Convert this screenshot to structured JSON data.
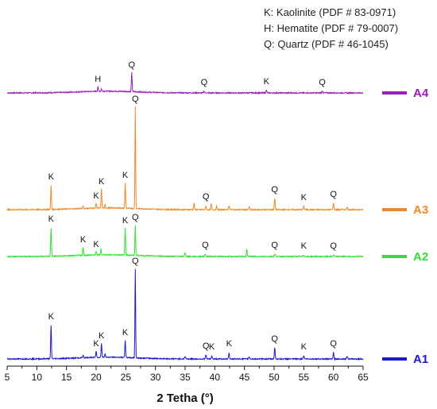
{
  "legend": [
    "K: Kaolinite (PDF # 83-0971)",
    "H: Hematite (PDF # 79-0007)",
    "Q: Quartz (PDF # 46-1045)"
  ],
  "chart_data": {
    "type": "line",
    "title": "",
    "xlabel": "2 Tetha (°)",
    "ylabel": "",
    "xlim": [
      5,
      65
    ],
    "xticks": [
      5,
      10,
      15,
      20,
      25,
      30,
      35,
      40,
      45,
      50,
      55,
      60,
      65
    ],
    "yaxis_shown": false,
    "grid": false,
    "legend_placement": "top-right",
    "series": [
      {
        "name": "A4",
        "color": "#9b1fb5",
        "baseline": 0,
        "peaks": [
          {
            "x": 20.3,
            "h": 6,
            "w": 0.08,
            "label": "H"
          },
          {
            "x": 26.0,
            "h": 24,
            "w": 0.09,
            "label": "Q"
          },
          {
            "x": 20.9,
            "h": 3,
            "w": 0.08,
            "label": ""
          },
          {
            "x": 38.2,
            "h": 2,
            "w": 0.12,
            "label": "Q"
          },
          {
            "x": 48.7,
            "h": 3,
            "w": 0.12,
            "label": "K"
          },
          {
            "x": 58.1,
            "h": 2,
            "w": 0.12,
            "label": "Q"
          }
        ]
      },
      {
        "name": "A3",
        "color": "#f08a24",
        "baseline": 0,
        "peaks": [
          {
            "x": 12.4,
            "h": 30,
            "w": 0.09,
            "label": "K"
          },
          {
            "x": 17.8,
            "h": 3,
            "w": 0.1,
            "label": ""
          },
          {
            "x": 20.0,
            "h": 6,
            "w": 0.09,
            "label": "K"
          },
          {
            "x": 20.9,
            "h": 24,
            "w": 0.09,
            "label": "K"
          },
          {
            "x": 21.5,
            "h": 4,
            "w": 0.09,
            "label": ""
          },
          {
            "x": 24.9,
            "h": 32,
            "w": 0.09,
            "label": "K"
          },
          {
            "x": 26.6,
            "h": 128,
            "w": 0.08,
            "label": "Q"
          },
          {
            "x": 36.5,
            "h": 8,
            "w": 0.1,
            "label": ""
          },
          {
            "x": 38.5,
            "h": 5,
            "w": 0.1,
            "label": "Q"
          },
          {
            "x": 39.4,
            "h": 7,
            "w": 0.1,
            "label": ""
          },
          {
            "x": 40.3,
            "h": 4,
            "w": 0.1,
            "label": ""
          },
          {
            "x": 42.4,
            "h": 5,
            "w": 0.1,
            "label": ""
          },
          {
            "x": 45.8,
            "h": 4,
            "w": 0.1,
            "label": ""
          },
          {
            "x": 50.1,
            "h": 14,
            "w": 0.1,
            "label": "Q"
          },
          {
            "x": 55.0,
            "h": 4,
            "w": 0.12,
            "label": "K"
          },
          {
            "x": 60.0,
            "h": 8,
            "w": 0.1,
            "label": "Q"
          },
          {
            "x": 62.3,
            "h": 3,
            "w": 0.12,
            "label": ""
          }
        ]
      },
      {
        "name": "A2",
        "color": "#33e033",
        "baseline": 0,
        "peaks": [
          {
            "x": 12.4,
            "h": 36,
            "w": 0.09,
            "label": "K"
          },
          {
            "x": 17.8,
            "h": 10,
            "w": 0.1,
            "label": "K"
          },
          {
            "x": 20.0,
            "h": 4,
            "w": 0.09,
            "label": "K"
          },
          {
            "x": 20.8,
            "h": 8,
            "w": 0.09,
            "label": ""
          },
          {
            "x": 24.9,
            "h": 34,
            "w": 0.09,
            "label": "K"
          },
          {
            "x": 26.6,
            "h": 38,
            "w": 0.08,
            "label": "Q"
          },
          {
            "x": 35.0,
            "h": 4,
            "w": 0.12,
            "label": ""
          },
          {
            "x": 38.4,
            "h": 3,
            "w": 0.12,
            "label": "Q"
          },
          {
            "x": 45.4,
            "h": 9,
            "w": 0.1,
            "label": ""
          },
          {
            "x": 50.1,
            "h": 3,
            "w": 0.12,
            "label": "Q"
          },
          {
            "x": 55.0,
            "h": 2,
            "w": 0.12,
            "label": "K"
          },
          {
            "x": 60.0,
            "h": 2,
            "w": 0.12,
            "label": "Q"
          }
        ]
      },
      {
        "name": "A1",
        "color": "#1a1acc",
        "baseline": 0,
        "peaks": [
          {
            "x": 12.4,
            "h": 42,
            "w": 0.09,
            "label": "K"
          },
          {
            "x": 17.8,
            "h": 3,
            "w": 0.1,
            "label": ""
          },
          {
            "x": 20.0,
            "h": 8,
            "w": 0.09,
            "label": "K"
          },
          {
            "x": 20.9,
            "h": 18,
            "w": 0.09,
            "label": "K"
          },
          {
            "x": 21.5,
            "h": 5,
            "w": 0.09,
            "label": ""
          },
          {
            "x": 24.9,
            "h": 22,
            "w": 0.09,
            "label": "K"
          },
          {
            "x": 26.6,
            "h": 112,
            "w": 0.08,
            "label": "Q"
          },
          {
            "x": 35.0,
            "h": 3,
            "w": 0.12,
            "label": ""
          },
          {
            "x": 38.5,
            "h": 5,
            "w": 0.1,
            "label": "Q"
          },
          {
            "x": 39.5,
            "h": 4,
            "w": 0.1,
            "label": "K"
          },
          {
            "x": 42.4,
            "h": 8,
            "w": 0.1,
            "label": "K"
          },
          {
            "x": 45.8,
            "h": 3,
            "w": 0.1,
            "label": ""
          },
          {
            "x": 50.1,
            "h": 14,
            "w": 0.1,
            "label": "Q"
          },
          {
            "x": 55.0,
            "h": 4,
            "w": 0.12,
            "label": "K"
          },
          {
            "x": 60.0,
            "h": 8,
            "w": 0.1,
            "label": "Q"
          },
          {
            "x": 62.3,
            "h": 3,
            "w": 0.12,
            "label": ""
          }
        ]
      }
    ]
  }
}
